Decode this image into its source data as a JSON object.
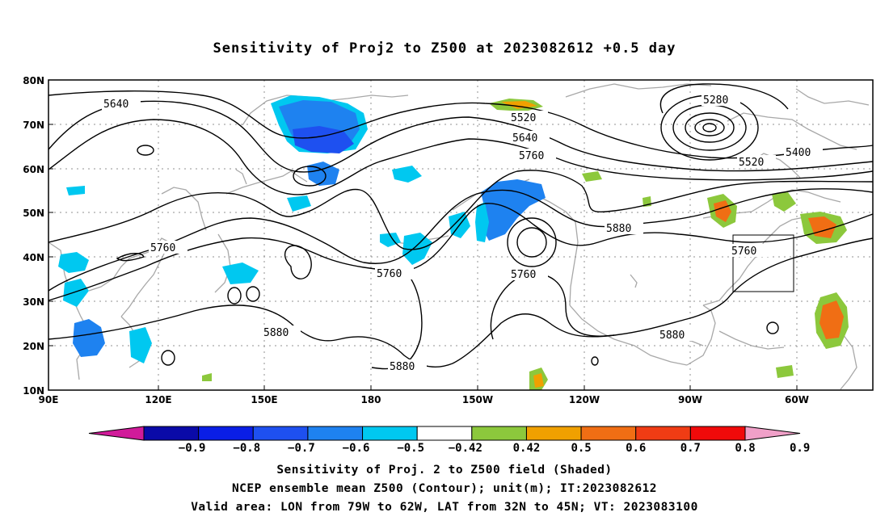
{
  "title": "Sensitivity of Proj2 to Z500 at 2023082612 +0.5 day",
  "lat_labels": [
    "80N",
    "70N",
    "60N",
    "50N",
    "40N",
    "30N",
    "20N",
    "10N"
  ],
  "lon_labels": [
    "90E",
    "120E",
    "150E",
    "180",
    "150W",
    "120W",
    "90W",
    "60W"
  ],
  "contour_labels": [
    "5640",
    "5520",
    "5640",
    "5760",
    "5280",
    "5400",
    "5520",
    "5760",
    "5880",
    "5760",
    "5760",
    "5880",
    "5880",
    "5760",
    "5880"
  ],
  "colorbar": {
    "labels": [
      "-0.9",
      "-0.8",
      "-0.7",
      "-0.6",
      "-0.5",
      "-0.42",
      "0.42",
      "0.5",
      "0.6",
      "0.7",
      "0.8",
      "0.9"
    ],
    "colors": [
      "#d11b9a",
      "#0a0aa8",
      "#0a1ee6",
      "#1e50f0",
      "#1e82f0",
      "#00c8f0",
      "#ffffff",
      "#8cc83c",
      "#f0a000",
      "#f06e14",
      "#f03c14",
      "#f00a0a",
      "#f0a0c8"
    ]
  },
  "footer": {
    "line1": "Sensitivity of Proj. 2 to Z500 field (Shaded)",
    "line2": "NCEP ensemble mean Z500 (Contour); unit(m); IT:2023082612",
    "line3": "Valid area: LON from 79W to 62W, LAT from 32N to 45N; VT: 2023083100"
  }
}
